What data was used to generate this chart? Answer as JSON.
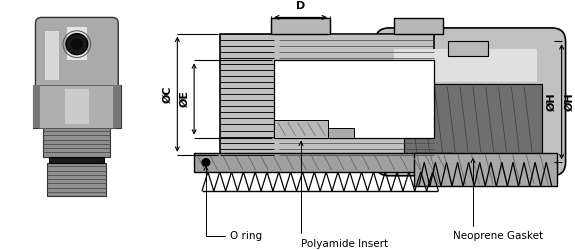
{
  "bg_color": "#ffffff",
  "lc": "#000000",
  "labels": {
    "D": "D",
    "C": "ØC",
    "E": "ØE",
    "H": "ØH",
    "o_ring": "O ring",
    "polyamide": "Polyamide Insert",
    "neoprene": "Neoprene Gasket"
  },
  "colors": {
    "light_gray": "#c8c8c8",
    "mid_gray": "#999999",
    "dark_body": "#555555",
    "white": "#ffffff",
    "black_part": "#1a1a1a",
    "hatch_gray": "#888888",
    "gasket_dark": "#666666",
    "thread_black": "#111111",
    "border": "#000000",
    "dim_line": "#4a4a4a"
  }
}
